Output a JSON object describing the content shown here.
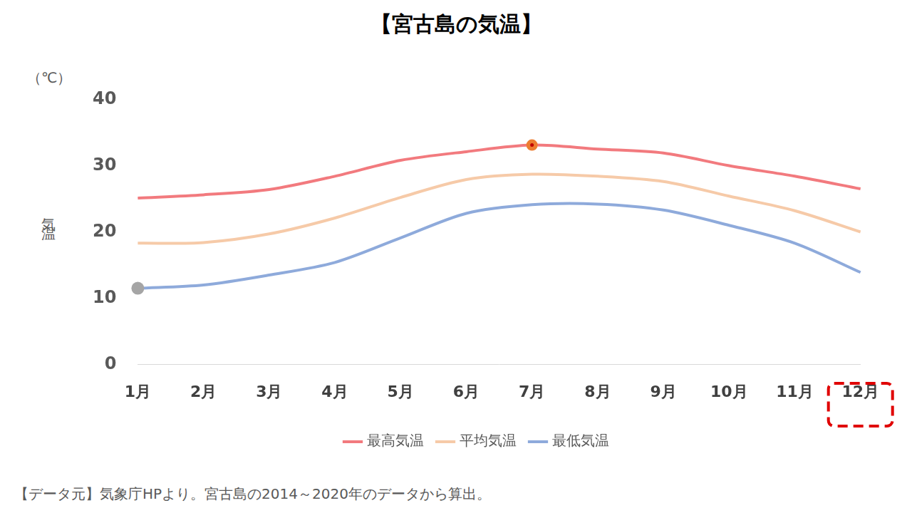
{
  "chart_data": {
    "type": "line",
    "title": "【宮古島の気温】",
    "y_label": "気温",
    "y_unit": "（℃）",
    "source": "【データ元】気象庁HPより。宮古島の2014～2020年のデータから算出。",
    "categories": [
      "1月",
      "2月",
      "3月",
      "4月",
      "5月",
      "6月",
      "7月",
      "8月",
      "9月",
      "10月",
      "11月",
      "12月"
    ],
    "series": [
      {
        "name": "最高気温",
        "color": "#f27a7e",
        "values": [
          25.1,
          25.6,
          26.4,
          28.4,
          30.8,
          32.1,
          33.1,
          32.5,
          31.9,
          30.0,
          28.4,
          26.5
        ]
      },
      {
        "name": "平均気温",
        "color": "#f6caa8",
        "values": [
          18.3,
          18.4,
          19.7,
          22.1,
          25.2,
          27.9,
          28.7,
          28.4,
          27.6,
          25.4,
          23.2,
          20.0
        ]
      },
      {
        "name": "最低気温",
        "color": "#8eaadb",
        "values": [
          11.5,
          12.0,
          13.5,
          15.4,
          19.1,
          22.8,
          24.1,
          24.2,
          23.3,
          21.0,
          18.3,
          13.9
        ]
      }
    ],
    "ylim": [
      0,
      40
    ],
    "yticks": [
      0,
      10,
      20,
      30,
      40
    ],
    "grid": false,
    "legend": "bottom"
  }
}
